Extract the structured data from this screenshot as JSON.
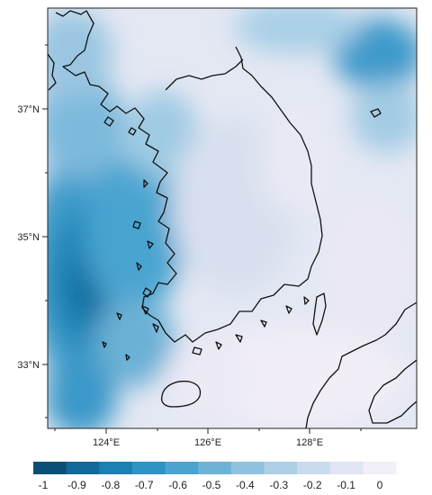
{
  "map": {
    "lat_labels": [
      "37°N",
      "35°N",
      "33°N"
    ],
    "lon_labels": [
      "124°E",
      "126°E",
      "128°E"
    ],
    "colorbar": {
      "tick_labels": [
        "-1",
        "-0.9",
        "-0.8",
        "-0.7",
        "-0.6",
        "-0.5",
        "-0.4",
        "-0.3",
        "-0.2",
        "-0.1",
        "0"
      ],
      "colors": [
        "#0b4f77",
        "#116a98",
        "#1a81b2",
        "#2f93c4",
        "#4ca3ce",
        "#6eb3d6",
        "#8ec2df",
        "#aecfe6",
        "#c8dcee",
        "#e0e6f4",
        "#f3eef7"
      ]
    }
  }
}
